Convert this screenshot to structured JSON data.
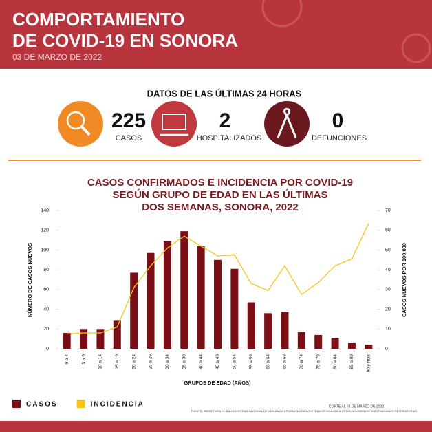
{
  "header": {
    "title": [
      "COMPORTAMIENTO",
      "DE COVID-19 EN SONORA"
    ],
    "date": "03 DE MARZO DE 2022"
  },
  "stats": {
    "heading": "DATOS DE LAS ÚLTIMAS 24 HORAS",
    "items": [
      {
        "value": 225,
        "label": "CASOS"
      },
      {
        "value": 2,
        "label": "HOSPITALIZADOS"
      },
      {
        "value": 0,
        "label": "DEFUNCIONES"
      }
    ]
  },
  "chart_data": {
    "type": "bar-line",
    "title": [
      "CASOS CONFIRMADOS E INCIDENCIA POR COVID-19",
      "SEGÚN GRUPO DE EDAD EN LAS ÚLTIMAS",
      "DOS SEMANAS, SONORA, 2022"
    ],
    "categories": [
      "0 a 4",
      "5 a 9",
      "10 a 14",
      "15 a 19",
      "20 a 24",
      "25 a 29",
      "30 a 34",
      "35 a 39",
      "40 a 44",
      "45 a 49",
      "50 a 54",
      "55 a 59",
      "60 a 64",
      "65 a 69",
      "70 a 74",
      "75 a 79",
      "80 a 84",
      "85 a 89",
      "90 y mas"
    ],
    "series": [
      {
        "name": "CASOS",
        "color": "#7b0f16",
        "values": [
          16,
          20,
          20,
          29,
          77,
          97,
          109,
          119,
          104,
          90,
          81,
          47,
          36,
          37,
          17,
          14,
          11,
          6,
          4
        ]
      },
      {
        "name": "INCIDENCIA",
        "color": "#f5c518",
        "axis": "y2",
        "values": [
          7.5,
          8,
          8,
          11,
          31,
          42,
          51,
          57,
          52,
          47,
          47.5,
          33,
          29.5,
          42,
          27.5,
          33.5,
          42,
          45.5,
          63.5
        ]
      }
    ],
    "ylim": [
      0,
      140
    ],
    "yticks": [
      0,
      20,
      40,
      60,
      80,
      100,
      120,
      140
    ],
    "y2lim": [
      0,
      70
    ],
    "y2ticks": [
      0,
      10,
      20,
      30,
      40,
      50,
      60,
      70
    ],
    "ylabel": "NÚMERO DE CASOS NUEVOS",
    "y2label": "CASOS NUEVOS POR 100,000",
    "xlabel": "GRUPOS DE EDAD (AÑOS)"
  },
  "footer": {
    "cutoff": "CORTE AL 03 DE MARZO DE 2022",
    "source": "FUENTE: SECRETARÍA DE SALUD/SISTEMA NACIONAL DE VIGILANCIA EPIDEMIOLÓGICA/SISTEMA DE VIGILANCIA EPIDEMIOLÓGICA DE ENFERMEDADES RESPIRATORIAS"
  }
}
